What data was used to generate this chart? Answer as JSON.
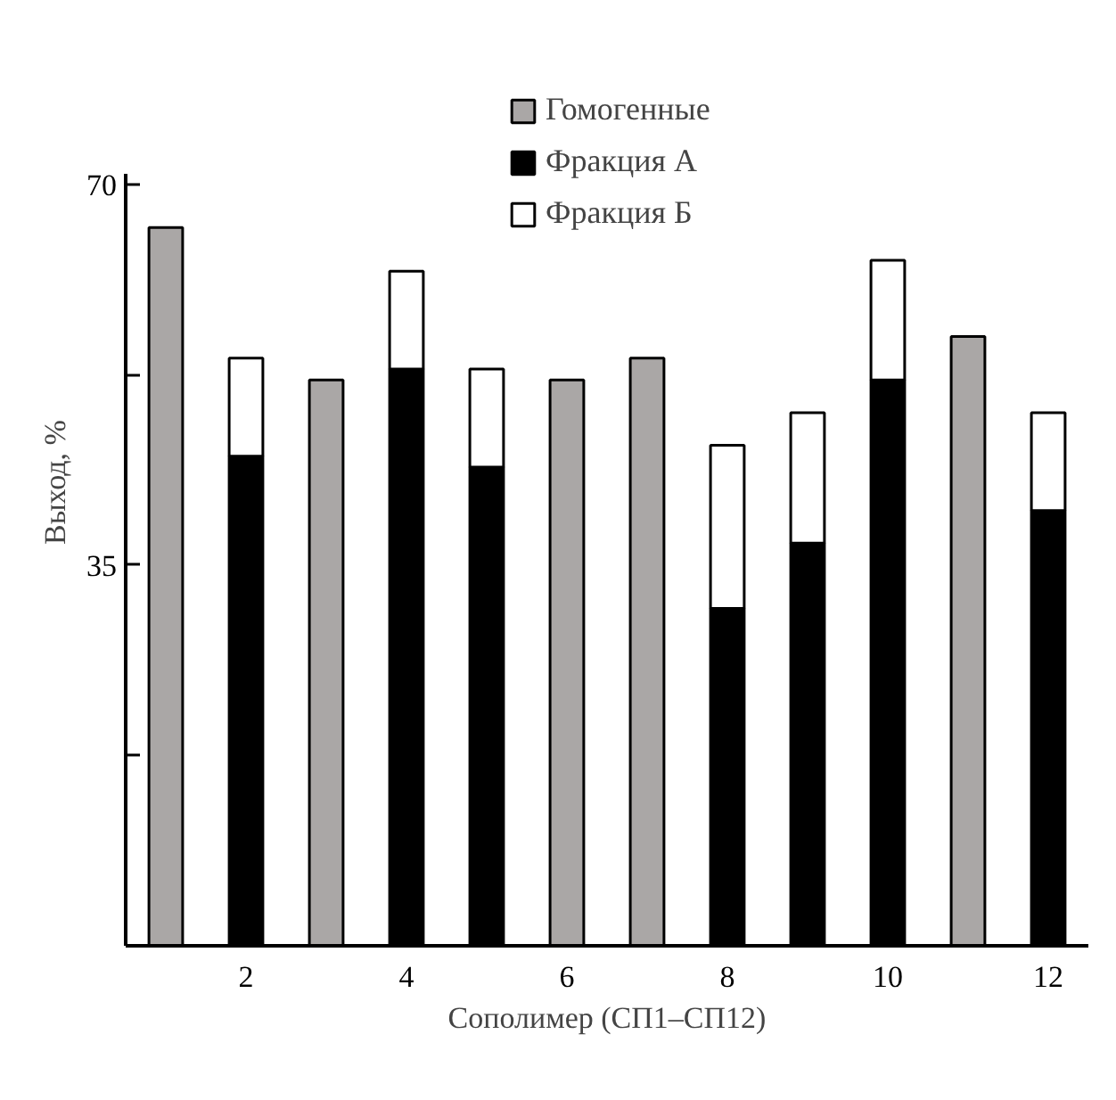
{
  "chart_data": {
    "type": "bar",
    "stacked": true,
    "xlabel": "Сополимер (СП1–СП12)",
    "ylabel": "Выход, %",
    "categories": [
      null,
      "2",
      null,
      "4",
      null,
      "6",
      null,
      "8",
      null,
      "10",
      null,
      "12"
    ],
    "series": [
      {
        "name": "Гомогенные",
        "color": "#aaa7a6",
        "values": [
          66,
          null,
          52,
          null,
          null,
          52,
          54,
          null,
          null,
          null,
          56,
          null
        ]
      },
      {
        "name": "Фракция А",
        "color": "#000000",
        "values": [
          null,
          45,
          null,
          53,
          44,
          null,
          null,
          31,
          37,
          52,
          null,
          40
        ]
      },
      {
        "name": "Фракция Б",
        "color": "#ffffff",
        "values": [
          null,
          9,
          null,
          9,
          9,
          null,
          null,
          15,
          12,
          11,
          null,
          9
        ]
      }
    ],
    "ylim": [
      0,
      71
    ],
    "yticks": [
      {
        "value": 17.5,
        "label": null
      },
      35,
      {
        "value": 52.5,
        "label": null
      },
      70
    ],
    "grid": false,
    "legend": "top"
  }
}
